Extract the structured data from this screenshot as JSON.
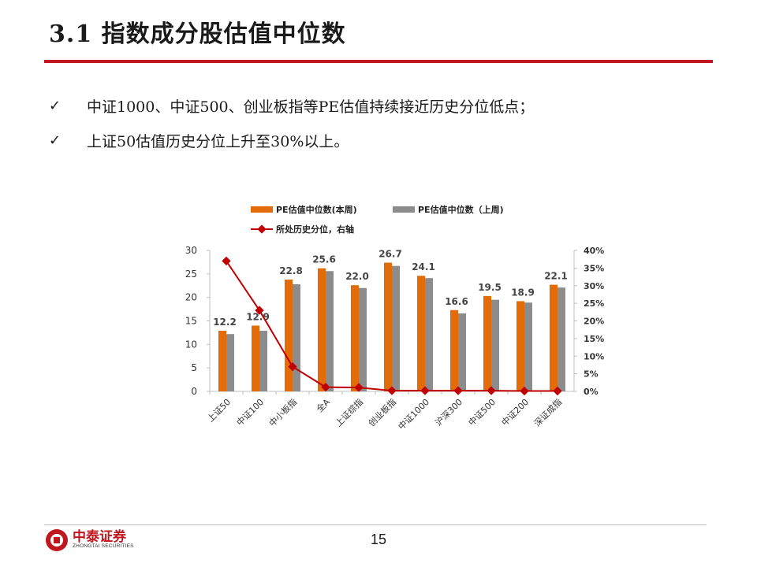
{
  "page": {
    "title": "3.1 指数成分股估值中位数",
    "bullets": [
      "中证1000、中证500、创业板指等PE估值持续接近历史分位低点；",
      "上证50估值历史分位上升至30%以上。"
    ],
    "check_icon": "✓",
    "page_number": "15",
    "logo": {
      "name_cn": "中泰证券",
      "name_en": "ZHONGTAI SECURITIES"
    }
  },
  "colors": {
    "accent": "#c0161d",
    "bar_this_week": "#e36c09",
    "bar_last_week": "#8c8c8c",
    "line": "#c00000"
  },
  "chart_data": {
    "type": "bar",
    "title": "",
    "categories": [
      "上证50",
      "中证100",
      "中小板指",
      "全A",
      "上证综指",
      "创业板指",
      "中证1000",
      "沪深300",
      "中证500",
      "中证200",
      "深证成指"
    ],
    "series": [
      {
        "name": "PE估值中位数(本周)",
        "type": "bar",
        "axis": "left",
        "values": [
          12.9,
          14.0,
          23.8,
          26.2,
          22.6,
          27.4,
          24.6,
          17.3,
          20.3,
          19.2,
          22.7
        ]
      },
      {
        "name": "PE估值中位数（上周)",
        "type": "bar",
        "axis": "left",
        "values": [
          12.2,
          12.9,
          22.8,
          25.6,
          22.0,
          26.7,
          24.1,
          16.6,
          19.5,
          18.9,
          22.1
        ]
      },
      {
        "name": "所处历史分位，右轴",
        "type": "line",
        "axis": "right",
        "values": [
          0.37,
          0.23,
          0.07,
          0.012,
          0.011,
          0.002,
          0.002,
          0.002,
          0.002,
          0.001,
          0.001
        ]
      }
    ],
    "data_labels": [
      "12.2",
      "12.9",
      "22.8",
      "25.6",
      "22.0",
      "26.7",
      "24.1",
      "16.6",
      "19.5",
      "18.9",
      "22.1"
    ],
    "y_left": {
      "range": [
        0,
        30
      ],
      "ticks": [
        "0",
        "5",
        "10",
        "15",
        "20",
        "25",
        "30"
      ]
    },
    "y_right": {
      "range": [
        0,
        0.4
      ],
      "ticks": [
        "0%",
        "5%",
        "10%",
        "15%",
        "20%",
        "25%",
        "30%",
        "35%",
        "40%"
      ]
    },
    "legend_position": "top",
    "grid": false
  }
}
